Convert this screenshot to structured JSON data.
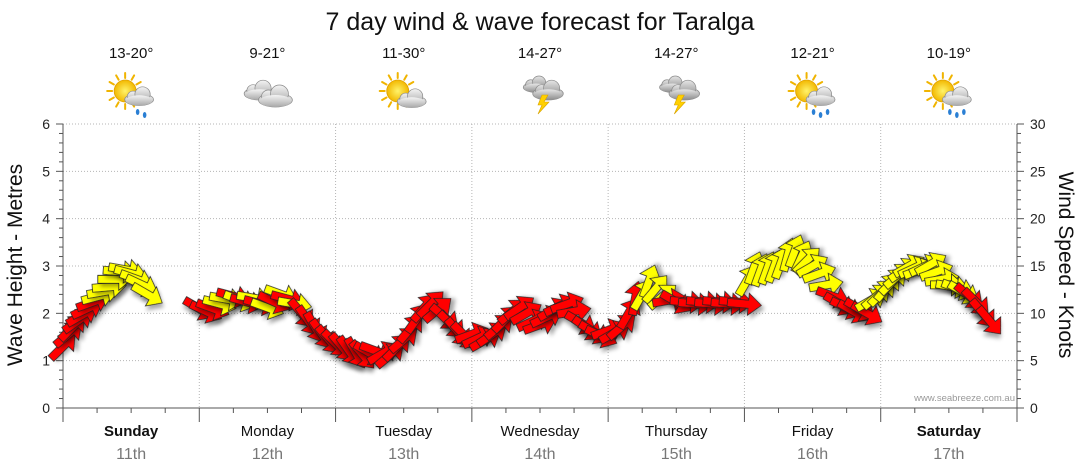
{
  "chart_data": {
    "type": "line",
    "title": "7 day wind & wave forecast for Taralga",
    "ylabel_left": "Wave Height - Metres",
    "ylabel_right": "Wind Speed - Knots",
    "yleft_range": [
      0,
      6
    ],
    "yleft_ticks": [
      "0",
      "1",
      "2",
      "3",
      "4",
      "5",
      "6"
    ],
    "yright_range": [
      0,
      30
    ],
    "yright_ticks": [
      "0",
      "5",
      "10",
      "15",
      "20",
      "25",
      "30"
    ],
    "watermark": "www.seabreeze.com.au",
    "grid": true,
    "days": [
      {
        "name": "Sunday",
        "date": "11th",
        "temp": "13-20°",
        "weather": "partly-cloudy-showers-icon",
        "bold": true
      },
      {
        "name": "Monday",
        "date": "12th",
        "temp": "9-21°",
        "weather": "cloudy-icon",
        "bold": false
      },
      {
        "name": "Tuesday",
        "date": "13th",
        "temp": "11-30°",
        "weather": "partly-cloudy-icon",
        "bold": false
      },
      {
        "name": "Wednesday",
        "date": "14th",
        "temp": "14-27°",
        "weather": "thunderstorm-icon",
        "bold": false
      },
      {
        "name": "Thursday",
        "date": "15th",
        "temp": "14-27°",
        "weather": "thunderstorm-icon",
        "bold": false
      },
      {
        "name": "Friday",
        "date": "16th",
        "temp": "12-21°",
        "weather": "sun-showers-icon",
        "bold": false
      },
      {
        "name": "Saturday",
        "date": "17th",
        "temp": "10-19°",
        "weather": "sun-showers-icon",
        "bold": true
      }
    ],
    "wind_series": {
      "name": "Wind Speed",
      "unit": "knots",
      "color_strong": "#ff0000",
      "color_light": "#ffff00",
      "points": [
        {
          "t": 0.0,
          "speed": 6.5,
          "dir": 225,
          "c": "r"
        },
        {
          "t": 0.04,
          "speed": 7.8,
          "dir": 230,
          "c": "r"
        },
        {
          "t": 0.07,
          "speed": 8.5,
          "dir": 225,
          "c": "r"
        },
        {
          "t": 0.11,
          "speed": 9.2,
          "dir": 235,
          "c": "r"
        },
        {
          "t": 0.14,
          "speed": 9.8,
          "dir": 240,
          "c": "r"
        },
        {
          "t": 0.18,
          "speed": 10.5,
          "dir": 245,
          "c": "r"
        },
        {
          "t": 0.22,
          "speed": 11.2,
          "dir": 250,
          "c": "r"
        },
        {
          "t": 0.26,
          "speed": 11.8,
          "dir": 255,
          "c": "y"
        },
        {
          "t": 0.3,
          "speed": 12.3,
          "dir": 260,
          "c": "y"
        },
        {
          "t": 0.34,
          "speed": 12.8,
          "dir": 265,
          "c": "y"
        },
        {
          "t": 0.38,
          "speed": 13.6,
          "dir": 270,
          "c": "y"
        },
        {
          "t": 0.42,
          "speed": 14.4,
          "dir": 275,
          "c": "y"
        },
        {
          "t": 0.46,
          "speed": 14.6,
          "dir": 280,
          "c": "y"
        },
        {
          "t": 0.5,
          "speed": 14.2,
          "dir": 285,
          "c": "y"
        },
        {
          "t": 0.54,
          "speed": 13.6,
          "dir": 290,
          "c": "y"
        },
        {
          "t": 0.58,
          "speed": 13.0,
          "dir": 295,
          "c": "y"
        },
        {
          "t": 0.62,
          "speed": 12.0,
          "dir": 300,
          "c": "y"
        },
        {
          "t": 1.0,
          "speed": 10.5,
          "dir": 300,
          "c": "r"
        },
        {
          "t": 1.05,
          "speed": 10.2,
          "dir": 295,
          "c": "r"
        },
        {
          "t": 1.1,
          "speed": 10.5,
          "dir": 290,
          "c": "r"
        },
        {
          "t": 1.15,
          "speed": 11.0,
          "dir": 285,
          "c": "y"
        },
        {
          "t": 1.2,
          "speed": 11.5,
          "dir": 280,
          "c": "y"
        },
        {
          "t": 1.25,
          "speed": 11.8,
          "dir": 285,
          "c": "r"
        },
        {
          "t": 1.3,
          "speed": 11.4,
          "dir": 290,
          "c": "y"
        },
        {
          "t": 1.35,
          "speed": 11.2,
          "dir": 285,
          "c": "r"
        },
        {
          "t": 1.4,
          "speed": 11.6,
          "dir": 280,
          "c": "y"
        },
        {
          "t": 1.45,
          "speed": 11.0,
          "dir": 285,
          "c": "r"
        },
        {
          "t": 1.5,
          "speed": 10.6,
          "dir": 290,
          "c": "y"
        },
        {
          "t": 1.55,
          "speed": 11.2,
          "dir": 295,
          "c": "r"
        },
        {
          "t": 1.6,
          "speed": 12.0,
          "dir": 290,
          "c": "y"
        },
        {
          "t": 1.65,
          "speed": 11.5,
          "dir": 285,
          "c": "r"
        },
        {
          "t": 1.7,
          "speed": 11.0,
          "dir": 280,
          "c": "y"
        },
        {
          "t": 1.75,
          "speed": 10.0,
          "dir": 320,
          "c": "r"
        },
        {
          "t": 1.8,
          "speed": 9.2,
          "dir": 325,
          "c": "r"
        },
        {
          "t": 1.85,
          "speed": 8.5,
          "dir": 330,
          "c": "r"
        },
        {
          "t": 1.9,
          "speed": 7.8,
          "dir": 325,
          "c": "r"
        },
        {
          "t": 1.95,
          "speed": 7.2,
          "dir": 320,
          "c": "r"
        },
        {
          "t": 2.0,
          "speed": 6.8,
          "dir": 315,
          "c": "r"
        },
        {
          "t": 2.05,
          "speed": 6.4,
          "dir": 320,
          "c": "r"
        },
        {
          "t": 2.1,
          "speed": 6.0,
          "dir": 325,
          "c": "r"
        },
        {
          "t": 2.15,
          "speed": 5.8,
          "dir": 330,
          "c": "r"
        },
        {
          "t": 2.2,
          "speed": 5.6,
          "dir": 320,
          "c": "r"
        },
        {
          "t": 2.25,
          "speed": 5.8,
          "dir": 300,
          "c": "r"
        },
        {
          "t": 2.3,
          "speed": 6.0,
          "dir": 290,
          "c": "r"
        },
        {
          "t": 2.35,
          "speed": 5.8,
          "dir": 240,
          "c": "r"
        },
        {
          "t": 2.4,
          "speed": 5.6,
          "dir": 230,
          "c": "r"
        },
        {
          "t": 2.45,
          "speed": 6.4,
          "dir": 225,
          "c": "r"
        },
        {
          "t": 2.5,
          "speed": 7.2,
          "dir": 230,
          "c": "r"
        },
        {
          "t": 2.55,
          "speed": 8.4,
          "dir": 220,
          "c": "r"
        },
        {
          "t": 2.6,
          "speed": 9.5,
          "dir": 215,
          "c": "r"
        },
        {
          "t": 2.65,
          "speed": 10.6,
          "dir": 220,
          "c": "r"
        },
        {
          "t": 2.7,
          "speed": 11.0,
          "dir": 225,
          "c": "r"
        },
        {
          "t": 2.75,
          "speed": 10.4,
          "dir": 230,
          "c": "r"
        },
        {
          "t": 2.8,
          "speed": 9.6,
          "dir": 310,
          "c": "r"
        },
        {
          "t": 2.85,
          "speed": 8.8,
          "dir": 315,
          "c": "r"
        },
        {
          "t": 2.9,
          "speed": 8.0,
          "dir": 320,
          "c": "r"
        },
        {
          "t": 2.95,
          "speed": 7.6,
          "dir": 315,
          "c": "r"
        },
        {
          "t": 3.0,
          "speed": 7.8,
          "dir": 250,
          "c": "r"
        },
        {
          "t": 3.05,
          "speed": 7.4,
          "dir": 245,
          "c": "r"
        },
        {
          "t": 3.1,
          "speed": 7.2,
          "dir": 240,
          "c": "r"
        },
        {
          "t": 3.15,
          "speed": 7.8,
          "dir": 235,
          "c": "r"
        },
        {
          "t": 3.2,
          "speed": 8.6,
          "dir": 230,
          "c": "r"
        },
        {
          "t": 3.25,
          "speed": 9.4,
          "dir": 225,
          "c": "r"
        },
        {
          "t": 3.3,
          "speed": 10.2,
          "dir": 230,
          "c": "r"
        },
        {
          "t": 3.35,
          "speed": 10.6,
          "dir": 235,
          "c": "r"
        },
        {
          "t": 3.4,
          "speed": 10.0,
          "dir": 240,
          "c": "r"
        },
        {
          "t": 3.45,
          "speed": 9.2,
          "dir": 245,
          "c": "r"
        },
        {
          "t": 3.5,
          "speed": 8.8,
          "dir": 250,
          "c": "r"
        },
        {
          "t": 3.55,
          "speed": 9.6,
          "dir": 245,
          "c": "r"
        },
        {
          "t": 3.6,
          "speed": 10.4,
          "dir": 240,
          "c": "r"
        },
        {
          "t": 3.65,
          "speed": 10.8,
          "dir": 245,
          "c": "r"
        },
        {
          "t": 3.7,
          "speed": 11.0,
          "dir": 250,
          "c": "r"
        },
        {
          "t": 3.75,
          "speed": 10.2,
          "dir": 260,
          "c": "r"
        },
        {
          "t": 3.8,
          "speed": 9.0,
          "dir": 300,
          "c": "r"
        },
        {
          "t": 3.85,
          "speed": 8.4,
          "dir": 305,
          "c": "r"
        },
        {
          "t": 3.9,
          "speed": 8.0,
          "dir": 300,
          "c": "r"
        },
        {
          "t": 3.95,
          "speed": 7.6,
          "dir": 295,
          "c": "r"
        },
        {
          "t": 4.0,
          "speed": 8.2,
          "dir": 250,
          "c": "r"
        },
        {
          "t": 4.05,
          "speed": 8.0,
          "dir": 240,
          "c": "r"
        },
        {
          "t": 4.1,
          "speed": 8.6,
          "dir": 230,
          "c": "r"
        },
        {
          "t": 4.15,
          "speed": 10.0,
          "dir": 210,
          "c": "r"
        },
        {
          "t": 4.2,
          "speed": 11.6,
          "dir": 190,
          "c": "r"
        },
        {
          "t": 4.25,
          "speed": 12.0,
          "dir": 210,
          "c": "y"
        },
        {
          "t": 4.3,
          "speed": 13.4,
          "dir": 200,
          "c": "y"
        },
        {
          "t": 4.35,
          "speed": 12.6,
          "dir": 220,
          "c": "y"
        },
        {
          "t": 4.4,
          "speed": 11.8,
          "dir": 230,
          "c": "y"
        },
        {
          "t": 4.45,
          "speed": 11.4,
          "dir": 260,
          "c": "r"
        },
        {
          "t": 4.5,
          "speed": 11.2,
          "dir": 300,
          "c": "r"
        },
        {
          "t": 4.58,
          "speed": 11.2,
          "dir": 275,
          "c": "r"
        },
        {
          "t": 4.64,
          "speed": 11.0,
          "dir": 275,
          "c": "r"
        },
        {
          "t": 4.7,
          "speed": 11.2,
          "dir": 275,
          "c": "r"
        },
        {
          "t": 4.76,
          "speed": 11.0,
          "dir": 275,
          "c": "r"
        },
        {
          "t": 4.82,
          "speed": 11.2,
          "dir": 275,
          "c": "r"
        },
        {
          "t": 4.88,
          "speed": 11.0,
          "dir": 275,
          "c": "r"
        },
        {
          "t": 4.94,
          "speed": 11.2,
          "dir": 275,
          "c": "r"
        },
        {
          "t": 5.0,
          "speed": 11.0,
          "dir": 275,
          "c": "r"
        },
        {
          "t": 5.02,
          "speed": 13.5,
          "dir": 210,
          "c": "y"
        },
        {
          "t": 5.07,
          "speed": 14.8,
          "dir": 200,
          "c": "y"
        },
        {
          "t": 5.12,
          "speed": 14.6,
          "dir": 200,
          "c": "y"
        },
        {
          "t": 5.17,
          "speed": 14.8,
          "dir": 200,
          "c": "y"
        },
        {
          "t": 5.22,
          "speed": 15.0,
          "dir": 200,
          "c": "y"
        },
        {
          "t": 5.27,
          "speed": 15.4,
          "dir": 200,
          "c": "y"
        },
        {
          "t": 5.32,
          "speed": 16.2,
          "dir": 195,
          "c": "y"
        },
        {
          "t": 5.37,
          "speed": 16.6,
          "dir": 200,
          "c": "y"
        },
        {
          "t": 5.42,
          "speed": 16.0,
          "dir": 205,
          "c": "y"
        },
        {
          "t": 5.46,
          "speed": 15.6,
          "dir": 225,
          "c": "y"
        },
        {
          "t": 5.5,
          "speed": 15.0,
          "dir": 240,
          "c": "y"
        },
        {
          "t": 5.55,
          "speed": 14.2,
          "dir": 250,
          "c": "y"
        },
        {
          "t": 5.6,
          "speed": 13.0,
          "dir": 260,
          "c": "y"
        },
        {
          "t": 5.65,
          "speed": 11.8,
          "dir": 290,
          "c": "r"
        },
        {
          "t": 5.7,
          "speed": 11.0,
          "dir": 300,
          "c": "r"
        },
        {
          "t": 5.75,
          "speed": 10.6,
          "dir": 295,
          "c": "r"
        },
        {
          "t": 5.8,
          "speed": 10.2,
          "dir": 300,
          "c": "r"
        },
        {
          "t": 5.85,
          "speed": 10.4,
          "dir": 300,
          "c": "r"
        },
        {
          "t": 5.9,
          "speed": 10.0,
          "dir": 300,
          "c": "r"
        },
        {
          "t": 5.93,
          "speed": 11.4,
          "dir": 240,
          "c": "y"
        },
        {
          "t": 5.97,
          "speed": 11.8,
          "dir": 230,
          "c": "y"
        },
        {
          "t": 6.01,
          "speed": 12.2,
          "dir": 225,
          "c": "y"
        },
        {
          "t": 6.05,
          "speed": 12.8,
          "dir": 220,
          "c": "y"
        },
        {
          "t": 6.09,
          "speed": 13.4,
          "dir": 225,
          "c": "y"
        },
        {
          "t": 6.13,
          "speed": 14.0,
          "dir": 230,
          "c": "y"
        },
        {
          "t": 6.17,
          "speed": 14.6,
          "dir": 235,
          "c": "y"
        },
        {
          "t": 6.21,
          "speed": 15.0,
          "dir": 240,
          "c": "y"
        },
        {
          "t": 6.25,
          "speed": 14.8,
          "dir": 245,
          "c": "y"
        },
        {
          "t": 6.29,
          "speed": 14.6,
          "dir": 250,
          "c": "y"
        },
        {
          "t": 6.33,
          "speed": 15.0,
          "dir": 245,
          "c": "y"
        },
        {
          "t": 6.37,
          "speed": 15.2,
          "dir": 240,
          "c": "y"
        },
        {
          "t": 6.41,
          "speed": 14.4,
          "dir": 250,
          "c": "y"
        },
        {
          "t": 6.45,
          "speed": 13.6,
          "dir": 260,
          "c": "y"
        },
        {
          "t": 6.49,
          "speed": 13.0,
          "dir": 270,
          "c": "y"
        },
        {
          "t": 6.53,
          "speed": 12.8,
          "dir": 280,
          "c": "y"
        },
        {
          "t": 6.57,
          "speed": 12.6,
          "dir": 290,
          "c": "y"
        },
        {
          "t": 6.61,
          "speed": 12.2,
          "dir": 300,
          "c": "y"
        },
        {
          "t": 6.65,
          "speed": 11.8,
          "dir": 310,
          "c": "r"
        },
        {
          "t": 6.7,
          "speed": 11.2,
          "dir": 315,
          "c": "r"
        },
        {
          "t": 6.75,
          "speed": 10.0,
          "dir": 320,
          "c": "r"
        },
        {
          "t": 6.8,
          "speed": 9.2,
          "dir": 320,
          "c": "r"
        }
      ]
    }
  }
}
